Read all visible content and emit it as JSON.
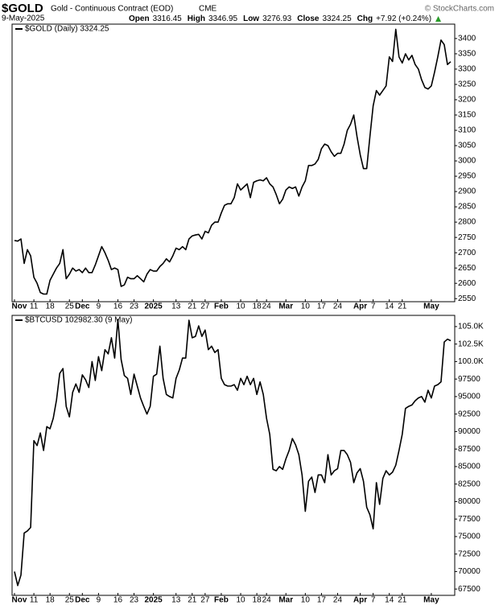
{
  "header": {
    "symbol": "$GOLD",
    "name": "Gold - Continuous Contract (EOD)",
    "exchange": "CME",
    "watermark": "© StockCharts.com",
    "date": "9-May-2025",
    "stats": [
      {
        "label": "Open",
        "value": "3316.45"
      },
      {
        "label": "High",
        "value": "3346.95"
      },
      {
        "label": "Low",
        "value": "3276.93"
      },
      {
        "label": "Close",
        "value": "3324.25"
      },
      {
        "label": "Chg",
        "value": "+7.92 (+0.24%)"
      }
    ],
    "change_color": "#2a9d2a"
  },
  "chart_data": [
    {
      "type": "line",
      "series": [
        {
          "name": "$GOLD (Daily) 3324.25",
          "color": "#000000",
          "values": [
            2740,
            2738,
            2745,
            2665,
            2710,
            2690,
            2620,
            2600,
            2570,
            2565,
            2565,
            2610,
            2630,
            2650,
            2665,
            2710,
            2615,
            2630,
            2650,
            2640,
            2645,
            2635,
            2650,
            2635,
            2635,
            2660,
            2690,
            2720,
            2700,
            2675,
            2645,
            2650,
            2645,
            2590,
            2595,
            2620,
            2615,
            2615,
            2625,
            2615,
            2605,
            2630,
            2645,
            2640,
            2640,
            2655,
            2665,
            2680,
            2670,
            2690,
            2715,
            2710,
            2720,
            2710,
            2745,
            2755,
            2758,
            2760,
            2745,
            2770,
            2765,
            2790,
            2800,
            2800,
            2830,
            2855,
            2860,
            2860,
            2880,
            2925,
            2905,
            2915,
            2925,
            2880,
            2930,
            2935,
            2938,
            2935,
            2945,
            2925,
            2915,
            2890,
            2860,
            2875,
            2905,
            2915,
            2910,
            2915,
            2885,
            2915,
            2935,
            2985,
            2985,
            2990,
            3005,
            3040,
            3055,
            3050,
            3030,
            3015,
            3025,
            3025,
            3055,
            3100,
            3120,
            3150,
            3080,
            3020,
            2975,
            2975,
            3080,
            3180,
            3230,
            3215,
            3230,
            3245,
            3340,
            3325,
            3430,
            3340,
            3320,
            3350,
            3330,
            3345,
            3315,
            3300,
            3265,
            3240,
            3235,
            3245,
            3290,
            3340,
            3395,
            3380,
            3315,
            3324.25
          ]
        }
      ],
      "xlim": [
        0,
        135
      ],
      "xticks": [
        {
          "value": 0,
          "label": "Nov"
        },
        {
          "value": 6,
          "label": "11"
        },
        {
          "value": 11,
          "label": "18"
        },
        {
          "value": 17,
          "label": "25"
        },
        {
          "value": 21,
          "label": "Dec"
        },
        {
          "value": 26,
          "label": "9"
        },
        {
          "value": 32,
          "label": "16"
        },
        {
          "value": 37,
          "label": "23"
        },
        {
          "value": 43,
          "label": "2025"
        },
        {
          "value": 50,
          "label": "13"
        },
        {
          "value": 55,
          "label": "21"
        },
        {
          "value": 59,
          "label": "27"
        },
        {
          "value": 64,
          "label": "Feb"
        },
        {
          "value": 70,
          "label": "10"
        },
        {
          "value": 75,
          "label": "18"
        },
        {
          "value": 78,
          "label": "24"
        },
        {
          "value": 84,
          "label": "Mar"
        },
        {
          "value": 90,
          "label": "10"
        },
        {
          "value": 95,
          "label": "17"
        },
        {
          "value": 100,
          "label": "24"
        },
        {
          "value": 107,
          "label": "Apr"
        },
        {
          "value": 111,
          "label": "7"
        },
        {
          "value": 116,
          "label": "14"
        },
        {
          "value": 120,
          "label": "21"
        },
        {
          "value": 129,
          "label": "May"
        }
      ],
      "ylim": [
        2540,
        3447
      ],
      "yticks": [
        2550,
        2600,
        2650,
        2700,
        2750,
        2800,
        2850,
        2900,
        2950,
        3000,
        3050,
        3100,
        3150,
        3200,
        3250,
        3300,
        3350,
        3400
      ]
    },
    {
      "type": "line",
      "series": [
        {
          "name": "$BTCUSD 102982.30 (9 May)",
          "color": "#000000",
          "values": [
            70000,
            68000,
            69500,
            75500,
            75800,
            76300,
            88700,
            88000,
            89800,
            87300,
            90700,
            90400,
            91900,
            94500,
            98300,
            99000,
            93600,
            92100,
            95600,
            96800,
            95600,
            98100,
            97400,
            96300,
            100000,
            97300,
            100700,
            98700,
            101700,
            101100,
            103400,
            100500,
            106000,
            100300,
            98000,
            97600,
            95300,
            98200,
            96500,
            94800,
            93600,
            92500,
            93600,
            97900,
            98200,
            102200,
            97600,
            95300,
            95000,
            94800,
            97600,
            98800,
            100500,
            100500,
            105900,
            103400,
            103600,
            105100,
            103600,
            104500,
            101700,
            102200,
            101300,
            101700,
            97600,
            96700,
            96500,
            96500,
            96700,
            95900,
            97600,
            96700,
            97900,
            96700,
            97600,
            95300,
            97100,
            95300,
            91900,
            89600,
            84600,
            84400,
            85000,
            84600,
            86100,
            87300,
            89000,
            88100,
            86700,
            83800,
            78600,
            82900,
            83500,
            81300,
            83800,
            83800,
            82700,
            86700,
            83800,
            84400,
            84700,
            87300,
            87300,
            86700,
            85600,
            82700,
            84100,
            84700,
            82900,
            79200,
            78100,
            76100,
            82700,
            79600,
            83300,
            84400,
            83800,
            84200,
            85200,
            87300,
            89600,
            93300,
            93600,
            93800,
            94400,
            94800,
            95000,
            94200,
            95900,
            94800,
            96500,
            96700,
            97100,
            102800,
            103200,
            102982.3
          ]
        }
      ],
      "xlim": [
        0,
        135
      ],
      "xticks": [
        {
          "value": 0,
          "label": "Nov"
        },
        {
          "value": 6,
          "label": "11"
        },
        {
          "value": 11,
          "label": "18"
        },
        {
          "value": 17,
          "label": "25"
        },
        {
          "value": 21,
          "label": "Dec"
        },
        {
          "value": 26,
          "label": "9"
        },
        {
          "value": 32,
          "label": "16"
        },
        {
          "value": 37,
          "label": "23"
        },
        {
          "value": 43,
          "label": "2025"
        },
        {
          "value": 50,
          "label": "13"
        },
        {
          "value": 55,
          "label": "21"
        },
        {
          "value": 59,
          "label": "27"
        },
        {
          "value": 64,
          "label": "Feb"
        },
        {
          "value": 70,
          "label": "10"
        },
        {
          "value": 75,
          "label": "18"
        },
        {
          "value": 78,
          "label": "24"
        },
        {
          "value": 84,
          "label": "Mar"
        },
        {
          "value": 90,
          "label": "10"
        },
        {
          "value": 95,
          "label": "17"
        },
        {
          "value": 100,
          "label": "24"
        },
        {
          "value": 107,
          "label": "Apr"
        },
        {
          "value": 111,
          "label": "7"
        },
        {
          "value": 116,
          "label": "14"
        },
        {
          "value": 120,
          "label": "21"
        },
        {
          "value": 129,
          "label": "May"
        }
      ],
      "ylim": [
        66600,
        106600
      ],
      "yticks": [
        67500,
        70000,
        72500,
        75000,
        77500,
        80000,
        82500,
        85000,
        87500,
        90000,
        92500,
        95000,
        97500,
        {
          "value": 100000,
          "label": "100.0K"
        },
        {
          "value": 102500,
          "label": "102.5K"
        },
        {
          "value": 105000,
          "label": "105.0K"
        }
      ]
    }
  ]
}
